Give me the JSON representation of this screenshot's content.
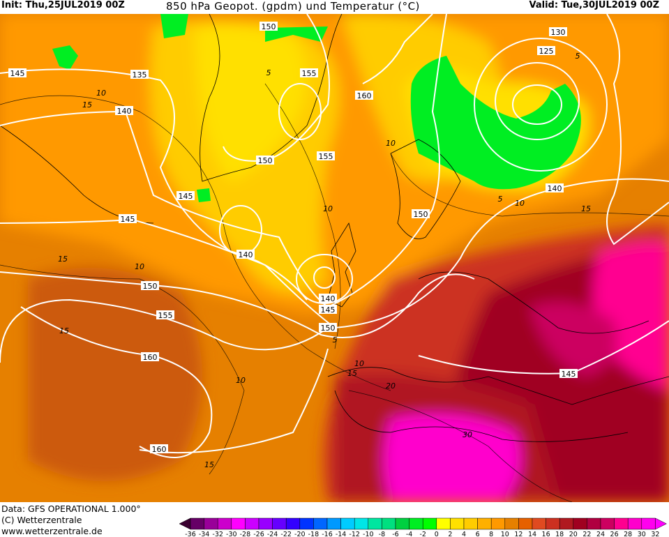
{
  "header": {
    "init": "Init: Thu,25JUL2019 00Z",
    "title": "850 hPa Geopot. (gpdm) und Temperatur (°C)",
    "valid": "Valid: Tue,30JUL2019 00Z"
  },
  "footer": {
    "data_source": "Data: GFS OPERATIONAL 1.000°",
    "copyright": "(C) Wetterzentrale",
    "website": "www.wetterzentrale.de"
  },
  "geopotential_labels": [
    "145",
    "135",
    "150",
    "155",
    "160",
    "130",
    "125",
    "140",
    "150",
    "155",
    "145",
    "140",
    "150",
    "145",
    "140",
    "150",
    "140",
    "145",
    "155",
    "150",
    "160",
    "145",
    "160"
  ],
  "temperature_labels": [
    "10",
    "15",
    "5",
    "10",
    "10",
    "5",
    "10",
    "15",
    "15",
    "10",
    "15",
    "5",
    "10",
    "15",
    "20",
    "10",
    "15",
    "30",
    "5"
  ],
  "colorbar": {
    "ticks": [
      "-36",
      "-34",
      "-32",
      "-30",
      "-28",
      "-26",
      "-24",
      "-22",
      "-20",
      "-18",
      "-16",
      "-14",
      "-12",
      "-10",
      "-8",
      "-6",
      "-4",
      "-2",
      "0",
      "2",
      "4",
      "6",
      "8",
      "10",
      "12",
      "14",
      "16",
      "18",
      "20",
      "22",
      "24",
      "26",
      "28",
      "30",
      "32"
    ],
    "colors": [
      "#660066",
      "#990099",
      "#cc00cc",
      "#ff00ff",
      "#cc00ff",
      "#9900ff",
      "#6600ff",
      "#3300ff",
      "#0033ff",
      "#0066ff",
      "#0099ff",
      "#00ccff",
      "#00e6e6",
      "#00e6a0",
      "#00e080",
      "#00d040",
      "#00ee22",
      "#00ff00",
      "#ffff00",
      "#ffe000",
      "#ffcc00",
      "#ffb000",
      "#ff9900",
      "#e68000",
      "#e66000",
      "#e04a20",
      "#cc3020",
      "#b01820",
      "#a00020",
      "#b00040",
      "#cc0060",
      "#ff0090",
      "#ff00cc",
      "#ff00ee"
    ],
    "under_color": "#3a0030",
    "over_color": "#ff00ff"
  }
}
